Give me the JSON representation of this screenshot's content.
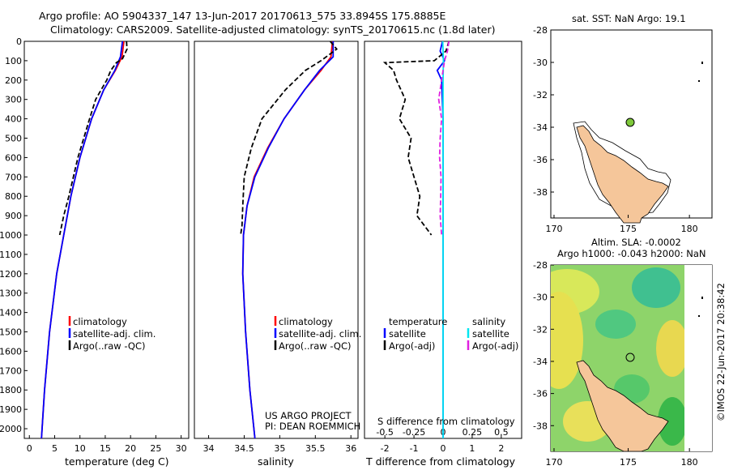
{
  "header": {
    "line1": "Argo profile: AO 5904337_147 13-Jun-2017 20170613_575 33.8945S 175.8885E",
    "line2": "Climatology: CARS2009. Satellite-adjusted climatology: synTS_20170615.nc (1.8d later)"
  },
  "colors": {
    "climatology": "#ff0000",
    "satellite": "#0000ff",
    "argo": "#000000",
    "salt_sat": "#00e6f0",
    "salt_argo": "#e020e0",
    "land": "#f5c69a"
  },
  "chart_data": [
    {
      "type": "line",
      "id": "temperature",
      "xlabel": "temperature (deg C)",
      "ylim": [
        2050,
        0
      ],
      "xlim": [
        -1,
        31.5
      ],
      "xticks": [
        0,
        5,
        10,
        15,
        20,
        25,
        30
      ],
      "yticks": [
        0,
        100,
        200,
        300,
        400,
        500,
        600,
        700,
        800,
        900,
        1000,
        1100,
        1200,
        1300,
        1400,
        1500,
        1600,
        1700,
        1800,
        1900,
        2000
      ],
      "legend": [
        "climatology",
        "satellite-adj. clim.",
        "Argo(..raw -QC)"
      ],
      "series": [
        {
          "name": "climatology",
          "pressure": [
            0,
            80,
            150,
            250,
            400,
            600,
            800,
            1000,
            1200,
            1500,
            1800,
            2050
          ],
          "values": [
            18.7,
            18.3,
            17.0,
            14.7,
            12.3,
            10.0,
            8.2,
            6.8,
            5.4,
            4.0,
            3.0,
            2.4
          ]
        },
        {
          "name": "satellite-adj. clim.",
          "pressure": [
            0,
            80,
            150,
            250,
            400,
            600,
            800,
            1000,
            1200,
            1500,
            1800,
            2050
          ],
          "values": [
            18.4,
            18.0,
            16.9,
            14.7,
            12.3,
            10.0,
            8.2,
            6.8,
            5.4,
            4.0,
            3.0,
            2.4
          ]
        },
        {
          "name": "Argo(..raw -QC)",
          "pressure": [
            0,
            40,
            90,
            110,
            150,
            200,
            300,
            400,
            600,
            800,
            900,
            1000
          ],
          "values": [
            19.2,
            19.3,
            18.4,
            17.2,
            16.1,
            15.3,
            13.1,
            11.9,
            9.6,
            7.8,
            6.8,
            6.0
          ]
        }
      ]
    },
    {
      "type": "line",
      "id": "salinity",
      "xlabel": "salinity",
      "xlim": [
        33.8,
        36.1
      ],
      "xticks": [
        34,
        34.5,
        35,
        35.5,
        36
      ],
      "legend": [
        "climatology",
        "satellite-adj. clim.",
        "Argo(..raw -QC)"
      ],
      "series": [
        {
          "name": "climatology",
          "pressure": [
            0,
            80,
            150,
            250,
            400,
            550,
            700,
            850,
            1000,
            1200,
            1500,
            1800,
            2050
          ],
          "values": [
            35.74,
            35.72,
            35.58,
            35.35,
            35.06,
            34.83,
            34.64,
            34.54,
            34.49,
            34.48,
            34.52,
            34.58,
            34.65
          ]
        },
        {
          "name": "satellite-adj. clim.",
          "pressure": [
            0,
            80,
            150,
            250,
            400,
            550,
            700,
            850,
            1000,
            1200,
            1500,
            1800,
            2050
          ],
          "values": [
            35.75,
            35.75,
            35.56,
            35.35,
            35.06,
            34.84,
            34.65,
            34.54,
            34.49,
            34.48,
            34.52,
            34.58,
            34.65
          ]
        },
        {
          "name": "Argo(..raw -QC)",
          "pressure": [
            0,
            40,
            100,
            150,
            250,
            400,
            550,
            700,
            850,
            950,
            1000
          ],
          "values": [
            35.71,
            35.8,
            35.58,
            35.36,
            35.08,
            34.75,
            34.6,
            34.5,
            34.48,
            34.47,
            34.45
          ]
        }
      ]
    },
    {
      "type": "line",
      "id": "difference",
      "xlabel": "T difference from climatology",
      "xlabel2": "S difference from climatology",
      "xlim": [
        -2.7,
        2.7
      ],
      "xticks": [
        -2,
        -1,
        0,
        1,
        2
      ],
      "sticks": [
        "-0.5",
        "-0.25",
        "0",
        "0.25",
        "0.5"
      ],
      "legend_titles": [
        "temperature",
        "salinity"
      ],
      "legend": [
        "satellite",
        "Argo(-adj)",
        "satellite",
        "Argo(-adj)"
      ],
      "series": [
        {
          "name": "T satellite",
          "pressure": [
            0,
            50,
            100,
            150,
            200,
            400,
            1000,
            2050
          ],
          "values": [
            -0.02,
            -0.1,
            0.05,
            -0.2,
            -0.05,
            0,
            0,
            0
          ]
        },
        {
          "name": "T Argo(-adj)",
          "pressure": [
            0,
            50,
            100,
            110,
            150,
            200,
            300,
            400,
            500,
            600,
            700,
            800,
            900,
            1000
          ],
          "values": [
            0.2,
            0.1,
            -0.3,
            -2.0,
            -1.7,
            -1.6,
            -1.3,
            -1.5,
            -1.1,
            -1.2,
            -1.0,
            -0.8,
            -0.9,
            -0.4
          ]
        },
        {
          "name": "S satellite",
          "pressure": [
            0,
            100,
            200,
            400,
            1000,
            2050
          ],
          "values": [
            -0.01,
            0.01,
            0,
            0,
            0,
            0
          ]
        },
        {
          "name": "S Argo(-adj)",
          "pressure": [
            0,
            50,
            100,
            200,
            300,
            400,
            500,
            600,
            700,
            800,
            900,
            1000
          ],
          "values": [
            0.2,
            0.15,
            0.05,
            -0.05,
            -0.15,
            -0.05,
            -0.1,
            -0.12,
            -0.07,
            -0.08,
            -0.1,
            -0.05
          ]
        }
      ]
    }
  ],
  "map1": {
    "title": "sat. SST: NaN Argo: 19.1",
    "xticks": [
      "170",
      "175",
      "180"
    ],
    "yticks": [
      "-28",
      "-30",
      "-32",
      "-34",
      "-36",
      "-38"
    ]
  },
  "map2": {
    "title1": "Altim. SLA: -0.0002",
    "title2": "Argo h1000: -0.043 h2000: NaN",
    "xticks": [
      "170",
      "175",
      "180"
    ],
    "yticks": [
      "-28",
      "-30",
      "-32",
      "-34",
      "-36",
      "-38"
    ]
  },
  "credits": {
    "project": "US ARGO PROJECT",
    "pi": "PI: DEAN ROEMMICH",
    "imos": "©IMOS 22-Jun-2017 20:38:42"
  }
}
